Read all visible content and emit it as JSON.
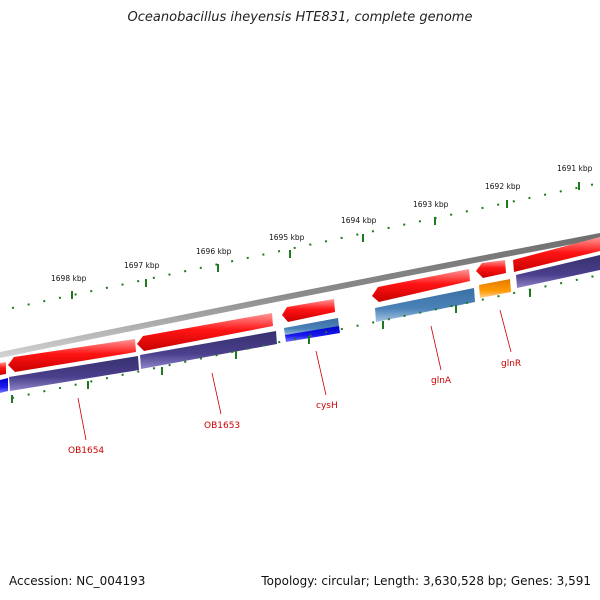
{
  "title": "Oceanobacillus iheyensis HTE831, complete genome",
  "footer": {
    "accession": "Accession: NC_004193",
    "summary": "Topology: circular; Length: 3,630,528 bp; Genes: 3,591"
  },
  "colors": {
    "forward_cds": "#ff0000",
    "reverse_cds": "#4a3f8c",
    "rna": "#4a82b8",
    "blue_feature": "#1a1aee",
    "orange_feature": "#ff9900",
    "backbone": "#888888",
    "ticks": "#1f7a1f",
    "labels": "#cc0000"
  },
  "axis": {
    "tick_labels": [
      "1691 kbp",
      "1692 kbp",
      "1693 kbp",
      "1694 kbp",
      "1695 kbp",
      "1696 kbp",
      "1697 kbp",
      "1698 kbp"
    ]
  },
  "genes": [
    {
      "name": "glnR"
    },
    {
      "name": "glnA"
    },
    {
      "name": "cysH"
    },
    {
      "name": "OB1653"
    },
    {
      "name": "OB1654"
    }
  ]
}
